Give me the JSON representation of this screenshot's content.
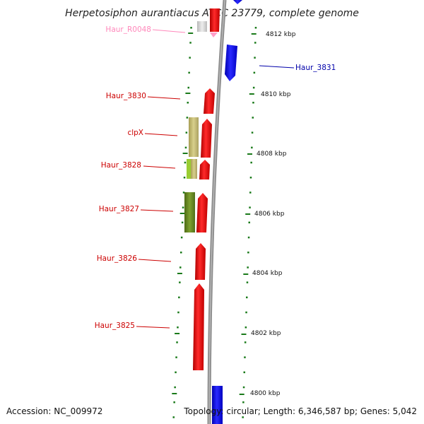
{
  "title": "Herpetosiphon aurantiacus ATCC 23779, complete genome",
  "accession": "Accession: NC_009972",
  "topology": "Topology: circular; Length: 6,346,587 bp; Genes: 5,042",
  "colors": {
    "backbone": "#8c8c8c",
    "tick": "#1a7a1a",
    "forward_gene": "#ff0000",
    "reverse_gene": "#0000ff",
    "rna": "#ff9ec8",
    "cds_khaki": "#c9c07a",
    "cds_olive": "#6b8e23",
    "cds_lime": "#9acd32",
    "label_red": "#cc0000",
    "label_blue": "#0000aa",
    "label_pink": "#ff88bb"
  },
  "scale_labels": [
    {
      "id": "k4812",
      "text": "4812 kbp"
    },
    {
      "id": "k4810",
      "text": "4810 kbp"
    },
    {
      "id": "k4808",
      "text": "4808 kbp"
    },
    {
      "id": "k4806",
      "text": "4806 kbp"
    },
    {
      "id": "k4804",
      "text": "4804 kbp"
    },
    {
      "id": "k4802",
      "text": "4802 kbp"
    },
    {
      "id": "k4800",
      "text": "4800 kbp"
    }
  ],
  "gene_labels": [
    {
      "id": "haur_r0048",
      "text": "Haur_R0048"
    },
    {
      "id": "haur_3831",
      "text": "Haur_3831"
    },
    {
      "id": "haur_3830",
      "text": "Haur_3830"
    },
    {
      "id": "clpx",
      "text": "clpX"
    },
    {
      "id": "haur_3828",
      "text": "Haur_3828"
    },
    {
      "id": "haur_3827",
      "text": "Haur_3827"
    },
    {
      "id": "haur_3826",
      "text": "Haur_3826"
    },
    {
      "id": "haur_3825",
      "text": "Haur_3825"
    }
  ]
}
